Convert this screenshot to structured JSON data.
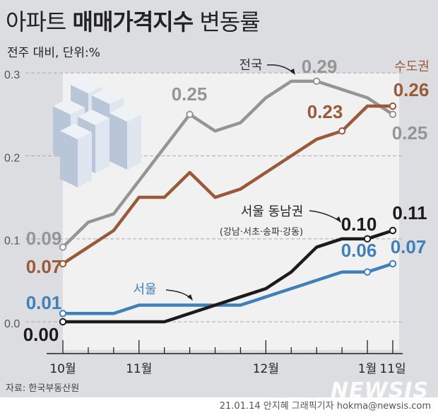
{
  "header": {
    "title_parts": [
      "아파트 ",
      "매매가격지수",
      " 변동률"
    ],
    "subtitle": "전주 대비, 단위:%"
  },
  "footer": {
    "source": "자료: 한국부동산원",
    "credit": "21.01.14 안지혜 그래픽기자 hokma@newsis.com",
    "logo": "NEWSIS"
  },
  "colors": {
    "background": "#dcdde0",
    "plot_area": "#f1f1f1",
    "national": "#959595",
    "capital_area": "#9a5a3a",
    "seoul": "#3f7fba",
    "seoul_southeast": "#1e1a1a"
  },
  "chart_data": {
    "type": "line",
    "title": "아파트 매매가격지수 변동률",
    "subtitle": "전주 대비, 단위:%",
    "ylim": [
      0,
      0.3
    ],
    "y_ticks": [
      "0.0",
      "0.1",
      "0.2",
      "0.3"
    ],
    "y_tick_values": [
      0,
      0.1,
      0.2,
      0.3
    ],
    "grid": "horizontal dashed",
    "x_tick_labels": [
      {
        "index": 0,
        "label": "10월"
      },
      {
        "index": 3,
        "label": "11월"
      },
      {
        "index": 8,
        "label": "12월"
      },
      {
        "index": 12,
        "label": "1월"
      },
      {
        "index": 13,
        "label": "11일"
      }
    ],
    "x_count": 14,
    "series": [
      {
        "key": "national",
        "name": "전국",
        "color": "#959595",
        "values": [
          0.09,
          0.12,
          0.13,
          0.17,
          0.21,
          0.25,
          0.23,
          0.24,
          0.27,
          0.29,
          0.29,
          0.28,
          0.27,
          0.25
        ],
        "data_labels": [
          {
            "index": 0,
            "text": "0.09"
          },
          {
            "index": 5,
            "text": "0.25"
          },
          {
            "index": 10,
            "text": "0.29"
          },
          {
            "index": 13,
            "text": "0.25"
          }
        ]
      },
      {
        "key": "capital_area",
        "name": "수도권",
        "color": "#9a5a3a",
        "values": [
          0.07,
          0.09,
          0.11,
          0.15,
          0.15,
          0.18,
          0.15,
          0.16,
          0.18,
          0.2,
          0.22,
          0.23,
          0.26,
          0.26
        ],
        "data_labels": [
          {
            "index": 0,
            "text": "0.07"
          },
          {
            "index": 11,
            "text": "0.23"
          },
          {
            "index": 13,
            "text": "0.26"
          }
        ]
      },
      {
        "key": "seoul",
        "name": "서울",
        "color": "#3f7fba",
        "values": [
          0.01,
          0.01,
          0.01,
          0.02,
          0.02,
          0.02,
          0.02,
          0.02,
          0.03,
          0.04,
          0.05,
          0.06,
          0.06,
          0.07
        ],
        "data_labels": [
          {
            "index": 0,
            "text": "0.01"
          },
          {
            "index": 12,
            "text": "0.06"
          },
          {
            "index": 13,
            "text": "0.07"
          }
        ]
      },
      {
        "key": "seoul_southeast",
        "name": "서울 동남권",
        "name_note": "(강남·서초·송파·강동)",
        "color": "#1e1a1a",
        "values": [
          0.0,
          0.0,
          0.0,
          0.0,
          0.0,
          0.01,
          0.02,
          0.03,
          0.04,
          0.06,
          0.09,
          0.1,
          0.1,
          0.11
        ],
        "data_labels": [
          {
            "index": 0,
            "text": "0.00"
          },
          {
            "index": 12,
            "text": "0.10"
          },
          {
            "index": 13,
            "text": "0.11"
          }
        ]
      }
    ]
  }
}
